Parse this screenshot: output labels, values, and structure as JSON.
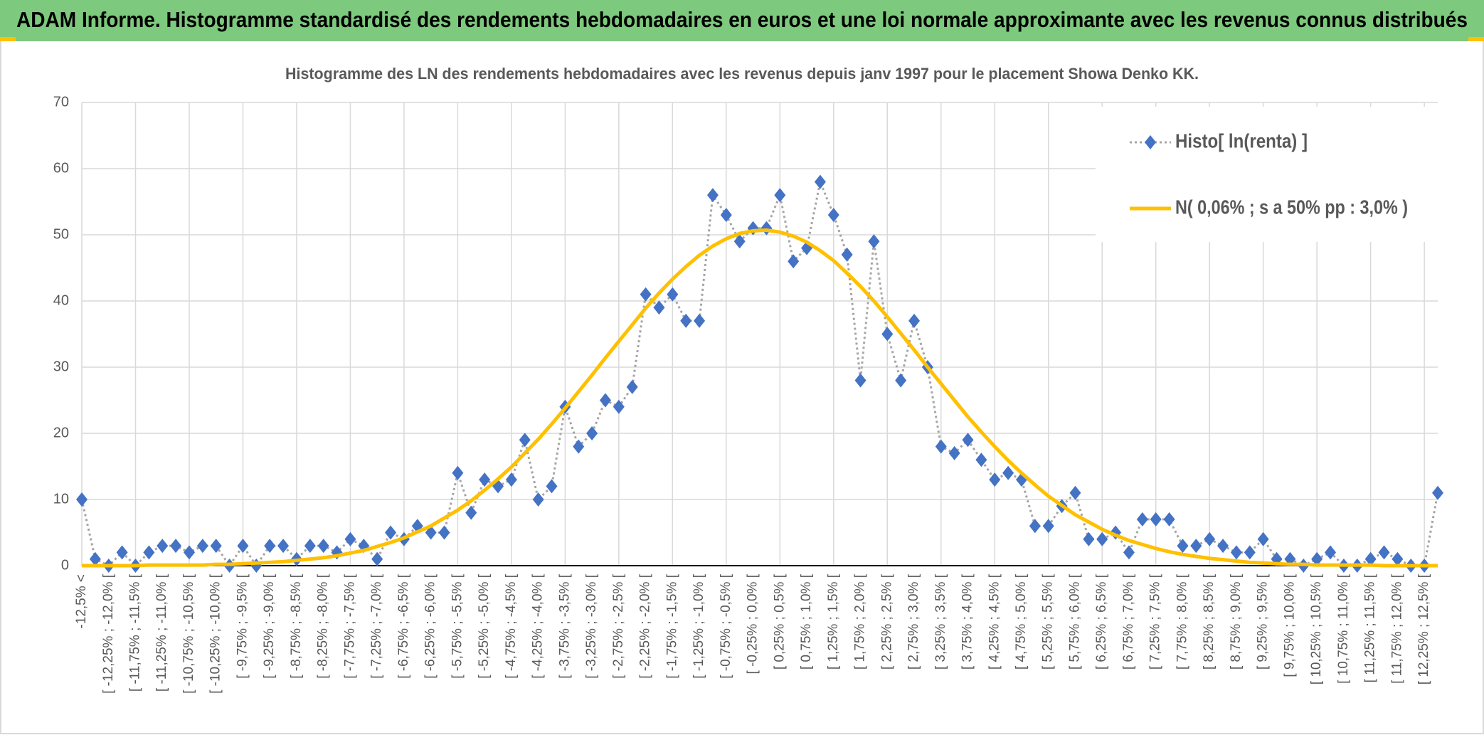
{
  "header": {
    "title": "ADAM Informe. Histogramme standardisé des rendements hebdomadaires en euros et une loi normale approximante avec les revenus connus distribués"
  },
  "chart_data": {
    "type": "line",
    "title": "Histogramme des LN des rendements hebdomadaires avec les revenus depuis janv 1997 pour le placement Showa Denko KK.",
    "categories": [
      "-12,5% <",
      null,
      "[ -12,25% ; -12,0% [",
      null,
      "[ -11,75% ; -11,5% [",
      null,
      "[ -11,25% ; -11,0% [",
      null,
      "[ -10,75% ; -10,5% [",
      null,
      "[ -10,25% ; -10,0% [",
      null,
      "[ -9,75% ; -9,5% [",
      null,
      "[ -9,25% ; -9,0% [",
      null,
      "[ -8,75% ; -8,5% [",
      null,
      "[ -8,25% ; -8,0% [",
      null,
      "[ -7,75% ; -7,5% [",
      null,
      "[ -7,25% ; -7,0% [",
      null,
      "[ -6,75% ; -6,5% [",
      null,
      "[ -6,25% ; -6,0% [",
      null,
      "[ -5,75% ; -5,5% [",
      null,
      "[ -5,25% ; -5,0% [",
      null,
      "[ -4,75% ; -4,5% [",
      null,
      "[ -4,25% ; -4,0% [",
      null,
      "[ -3,75% ; -3,5% [",
      null,
      "[ -3,25% ; -3,0% [",
      null,
      "[ -2,75% ; -2,5% [",
      null,
      "[ -2,25% ; -2,0% [",
      null,
      "[ -1,75% ; -1,5% [",
      null,
      "[ -1,25% ; -1,0% [",
      null,
      "[ -0,75% ; -0,5% [",
      null,
      "[ -0,25% ; 0,0% [",
      null,
      "[ 0,25% ; 0,5% [",
      null,
      "[ 0,75% ; 1,0% [",
      null,
      "[ 1,25% ; 1,5% [",
      null,
      "[ 1,75% ; 2,0% [",
      null,
      "[ 2,25% ; 2,5% [",
      null,
      "[ 2,75% ; 3,0% [",
      null,
      "[ 3,25% ; 3,5% [",
      null,
      "[ 3,75% ; 4,0% [",
      null,
      "[ 4,25% ; 4,5% [",
      null,
      "[ 4,75% ; 5,0% [",
      null,
      "[ 5,25% ; 5,5% [",
      null,
      "[ 5,75% ; 6,0% [",
      null,
      "[ 6,25% ; 6,5% [",
      null,
      "[ 6,75% ; 7,0% [",
      null,
      "[ 7,25% ; 7,5% [",
      null,
      "[ 7,75% ; 8,0% [",
      null,
      "[ 8,25% ; 8,5% [",
      null,
      "[ 8,75% ; 9,0% [",
      null,
      "[ 9,25% ; 9,5% [",
      null,
      "[ 9,75% ; 10,0% [",
      null,
      "[ 10,25% ; 10,5% [",
      null,
      "[ 10,75% ; 11,0% [",
      null,
      "[ 11,25% ; 11,5% [",
      null,
      "[ 11,75% ; 12,0% [",
      null,
      "[ 12,25% ; 12,5% [",
      null
    ],
    "series": [
      {
        "name": "Histo[ ln(renta) ]",
        "color": "#4472c4",
        "line_color": "#a5a5a5",
        "marker": "diamond",
        "values": [
          10,
          1,
          0,
          2,
          0,
          2,
          3,
          3,
          2,
          3,
          3,
          0,
          3,
          0,
          3,
          3,
          1,
          3,
          3,
          2,
          4,
          3,
          1,
          5,
          4,
          6,
          5,
          5,
          14,
          8,
          13,
          12,
          13,
          19,
          10,
          12,
          24,
          18,
          20,
          25,
          24,
          27,
          41,
          39,
          41,
          37,
          37,
          56,
          53,
          49,
          51,
          51,
          56,
          46,
          48,
          58,
          53,
          47,
          28,
          49,
          35,
          28,
          37,
          30,
          18,
          17,
          19,
          16,
          13,
          14,
          13,
          6,
          6,
          9,
          11,
          4,
          4,
          5,
          2,
          7,
          7,
          7,
          3,
          3,
          4,
          3,
          2,
          2,
          4,
          1,
          1,
          0,
          1,
          2,
          0,
          0,
          1,
          2,
          1,
          0,
          0,
          11
        ]
      },
      {
        "name": "N( 0,06% ; s a 50% pp : 3,0% )",
        "color": "#ffc000",
        "values": [
          0,
          0,
          0,
          0,
          0,
          0.1,
          0.1,
          0.1,
          0.1,
          0.1,
          0.2,
          0.2,
          0.3,
          0.4,
          0.5,
          0.6,
          0.8,
          1.0,
          1.2,
          1.5,
          1.9,
          2.3,
          2.9,
          3.5,
          4.2,
          5.1,
          6.0,
          7.2,
          8.4,
          9.8,
          11.4,
          13.1,
          14.9,
          17.0,
          19.1,
          21.4,
          23.8,
          26.3,
          28.8,
          31.4,
          33.9,
          36.4,
          38.9,
          41.2,
          43.3,
          45.2,
          46.9,
          48.3,
          49.4,
          50.2,
          50.6,
          50.7,
          50.4,
          49.8,
          48.9,
          47.6,
          46.1,
          44.2,
          42.2,
          40.0,
          37.6,
          35.1,
          32.6,
          30.0,
          27.5,
          25.0,
          22.5,
          20.2,
          18.0,
          15.9,
          14.0,
          12.2,
          10.5,
          9.1,
          7.7,
          6.6,
          5.5,
          4.6,
          3.8,
          3.2,
          2.6,
          2.1,
          1.7,
          1.4,
          1.1,
          0.9,
          0.7,
          0.5,
          0.4,
          0.3,
          0.2,
          0.2,
          0.1,
          0.1,
          0.1,
          0.1,
          0.1,
          0,
          0,
          0,
          0,
          0
        ]
      }
    ],
    "ylim": [
      0,
      70
    ],
    "yticks": [
      0,
      10,
      20,
      30,
      40,
      50,
      60,
      70
    ],
    "grid": true,
    "legend": "upper right"
  }
}
